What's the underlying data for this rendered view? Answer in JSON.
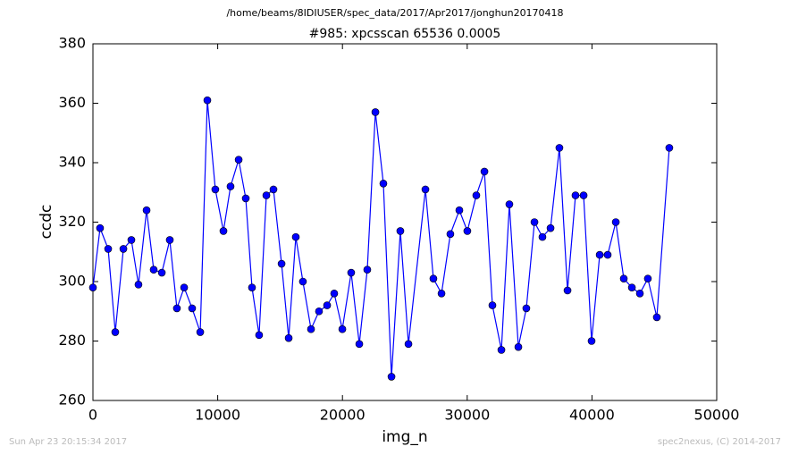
{
  "header": {
    "path": "/home/beams/8IDIUSER/spec_data/2017/Apr2017/jonghun20170418"
  },
  "footer": {
    "left": "Sun Apr 23 20:15:34 2017",
    "right": "spec2nexus, (C) 2014-2017"
  },
  "chart_data": {
    "type": "line",
    "title": "#985: xpcsscan 65536 0.0005",
    "x_label": "img_n",
    "y_label": "ccdc",
    "x": [
      0,
      570,
      1220,
      1790,
      2440,
      3080,
      3650,
      4300,
      4870,
      5520,
      6160,
      6730,
      7310,
      7950,
      8600,
      9170,
      9810,
      10460,
      11030,
      11680,
      12250,
      12750,
      13320,
      13900,
      14470,
      15120,
      15690,
      16260,
      16830,
      17480,
      18120,
      18770,
      19340,
      19990,
      20700,
      21350,
      21990,
      22640,
      23280,
      23930,
      24640,
      25290,
      26650,
      27290,
      27940,
      28650,
      29370,
      30010,
      30730,
      31380,
      32020,
      32740,
      33380,
      34100,
      34740,
      35390,
      36030,
      36680,
      37390,
      38040,
      38680,
      39330,
      39970,
      40620,
      41260,
      41910,
      42550,
      43200,
      43840,
      44480,
      45200,
      46200
    ],
    "series": [
      {
        "name": "ccdc",
        "color": "#0000ff",
        "values": [
          298,
          318,
          311,
          283,
          311,
          314,
          299,
          324,
          304,
          303,
          314,
          291,
          298,
          291,
          283,
          361,
          331,
          317,
          332,
          341,
          328,
          298,
          282,
          329,
          331,
          306,
          281,
          315,
          300,
          284,
          290,
          292,
          296,
          284,
          303,
          279,
          304,
          357,
          333,
          268,
          317,
          279,
          331,
          301,
          296,
          316,
          324,
          317,
          329,
          337,
          292,
          277,
          326,
          278,
          291,
          320,
          315,
          318,
          345,
          297,
          329,
          329,
          280,
          309,
          309,
          320,
          301,
          298,
          296,
          301,
          288,
          345
        ]
      }
    ],
    "xlim": [
      0,
      50000
    ],
    "xticks": [
      0,
      10000,
      20000,
      30000,
      40000,
      50000
    ],
    "ylim": [
      260,
      380
    ],
    "yticks": [
      260,
      280,
      300,
      320,
      340,
      360,
      380
    ]
  }
}
